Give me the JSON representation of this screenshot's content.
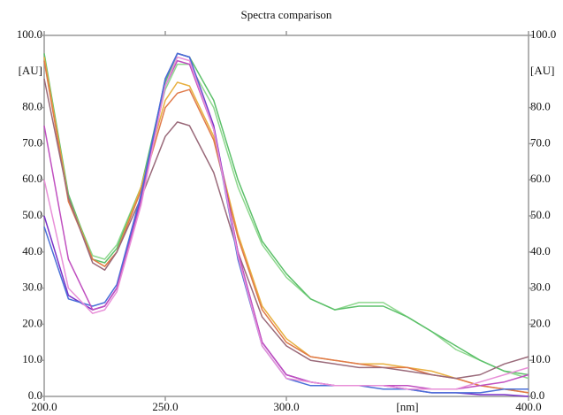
{
  "chart_data": {
    "type": "line",
    "title": "Spectra comparison",
    "x_label": "[nm]",
    "y_label": "[AU]",
    "x": [
      200,
      210,
      220,
      225,
      230,
      240,
      250,
      255,
      260,
      270,
      280,
      290,
      300,
      310,
      320,
      330,
      340,
      350,
      360,
      370,
      380,
      390,
      400
    ],
    "series": [
      {
        "color": "#8fd88f",
        "values": [
          93,
          55,
          39,
          38,
          42,
          58,
          85,
          92,
          92,
          80,
          58,
          42,
          33,
          27,
          24,
          26,
          26,
          22,
          18,
          13,
          10,
          7,
          5
        ]
      },
      {
        "color": "#5cc06a",
        "values": [
          95,
          56,
          38,
          37,
          41,
          58,
          87,
          95,
          94,
          82,
          60,
          43,
          34,
          27,
          24,
          25,
          25,
          22,
          18,
          14,
          10,
          7,
          6
        ]
      },
      {
        "color": "#e8b040",
        "values": [
          94,
          55,
          38,
          36,
          40,
          58,
          82,
          87,
          86,
          72,
          45,
          25,
          16,
          11,
          10,
          9,
          9,
          8,
          7,
          5,
          3,
          2,
          1
        ]
      },
      {
        "color": "#e07a4a",
        "values": [
          93,
          54,
          38,
          36,
          40,
          57,
          80,
          84,
          85,
          71,
          44,
          24,
          15,
          11,
          10,
          9,
          8,
          8,
          6,
          5,
          3,
          2,
          1
        ]
      },
      {
        "color": "#9a6a7a",
        "values": [
          88,
          55,
          37,
          35,
          40,
          55,
          72,
          76,
          75,
          62,
          40,
          22,
          14,
          10,
          9,
          8,
          8,
          7,
          6,
          5,
          6,
          9,
          11
        ]
      },
      {
        "color": "#7a30c8",
        "values": [
          50,
          28,
          24,
          25,
          30,
          55,
          88,
          95,
          94,
          75,
          40,
          15,
          6,
          4,
          3,
          3,
          3,
          2,
          1,
          1,
          0.5,
          0.5,
          0
        ]
      },
      {
        "color": "#4a70d8",
        "values": [
          47,
          27,
          25,
          26,
          31,
          56,
          88,
          95,
          94,
          74,
          38,
          14,
          5,
          3,
          3,
          3,
          2,
          2,
          1,
          1,
          1,
          2,
          2
        ]
      },
      {
        "color": "#c050c0",
        "values": [
          75,
          38,
          24,
          25,
          30,
          54,
          86,
          93,
          92,
          74,
          40,
          15,
          6,
          4,
          3,
          3,
          3,
          3,
          2,
          2,
          3,
          4,
          6
        ]
      },
      {
        "color": "#e890d8",
        "values": [
          60,
          30,
          23,
          24,
          29,
          53,
          86,
          94,
          93,
          74,
          39,
          14,
          5,
          4,
          3,
          3,
          3,
          2,
          2,
          2,
          4,
          6,
          8
        ]
      }
    ],
    "xlim": [
      200,
      400
    ],
    "ylim": [
      0,
      100
    ],
    "xticks": [
      {
        "value": 200,
        "label": "200.0"
      },
      {
        "value": 250,
        "label": "250.0"
      },
      {
        "value": 300,
        "label": "300.0"
      },
      {
        "value": 400,
        "label": "400.0"
      }
    ],
    "yticks": [
      {
        "value": 0,
        "label": "0.0"
      },
      {
        "value": 10,
        "label": "10.0"
      },
      {
        "value": 20,
        "label": "20.0"
      },
      {
        "value": 30,
        "label": "30.0"
      },
      {
        "value": 40,
        "label": "40.0"
      },
      {
        "value": 50,
        "label": "50.0"
      },
      {
        "value": 60,
        "label": "60.0"
      },
      {
        "value": 70,
        "label": "70.0"
      },
      {
        "value": 80,
        "label": "80.0"
      },
      {
        "value": 100,
        "label": "100.0"
      }
    ],
    "grid": false
  }
}
